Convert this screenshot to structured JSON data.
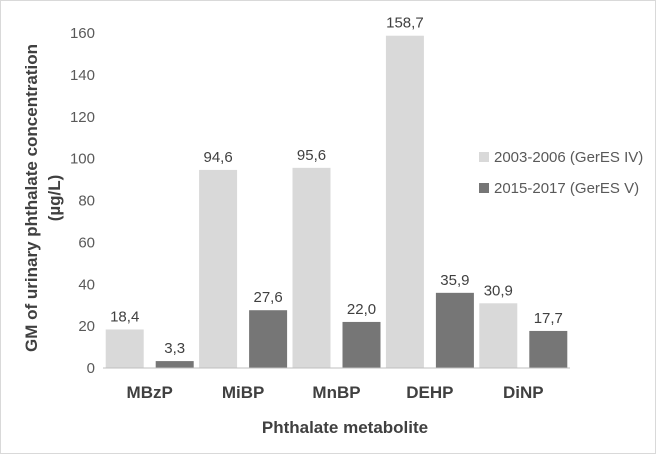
{
  "chart_data": {
    "type": "bar",
    "title": "",
    "xlabel": "Phthalate metabolite",
    "ylabel_line1": "GM of urinary phthalate concentration",
    "ylabel_line2": "(µg/L)",
    "ylim": [
      0,
      160
    ],
    "yticks": [
      "0",
      "20",
      "40",
      "60",
      "80",
      "100",
      "120",
      "140",
      "160"
    ],
    "grid": false,
    "legend_position": "right",
    "categories": [
      "MBzP",
      "MiBP",
      "MnBP",
      "DEHP",
      "DiNP"
    ],
    "series": [
      {
        "name": "2003-2006 (GerES IV)",
        "color": "#d9d9d9",
        "values": [
          18.4,
          94.6,
          95.6,
          158.7,
          30.9
        ],
        "labels": [
          "18,4",
          "94,6",
          "95,6",
          "158,7",
          "30,9"
        ]
      },
      {
        "name": "2015-2017 (GerES V)",
        "color": "#767676",
        "values": [
          3.3,
          27.6,
          22.0,
          35.9,
          17.7
        ],
        "labels": [
          "3,3",
          "27,6",
          "22,0",
          "35,9",
          "17,7"
        ]
      }
    ]
  }
}
